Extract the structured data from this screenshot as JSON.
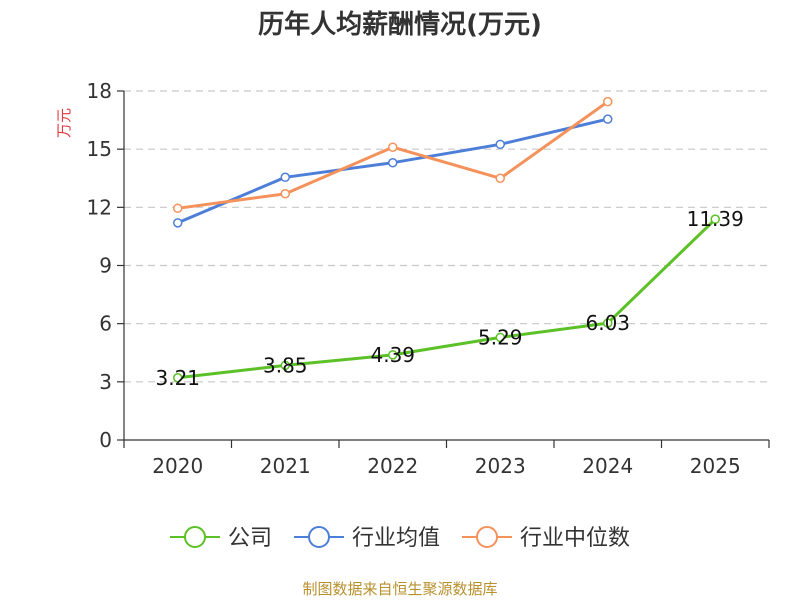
{
  "chart_data": {
    "type": "line",
    "title": "历年人均薪酬情况(万元)",
    "ylabel": "万元",
    "xlabel": "",
    "categories": [
      "2020",
      "2021",
      "2022",
      "2023",
      "2024",
      "2025"
    ],
    "ylim": [
      0,
      18
    ],
    "yticks": [
      0,
      3,
      6,
      9,
      12,
      15,
      18
    ],
    "grid": true,
    "legend_position": "bottom",
    "series": [
      {
        "name": "公司",
        "color": "#5bc126",
        "values": [
          3.21,
          3.85,
          4.39,
          5.29,
          6.03,
          11.39
        ],
        "labels": [
          "3.21",
          "3.85",
          "4.39",
          "5.29",
          "6.03",
          "11.39"
        ]
      },
      {
        "name": "行业均值",
        "color": "#4d7fd8",
        "values": [
          11.2,
          13.55,
          14.3,
          15.25,
          16.55,
          null
        ]
      },
      {
        "name": "行业中位数",
        "color": "#f5915a",
        "values": [
          11.95,
          12.7,
          15.1,
          13.5,
          17.45,
          null
        ]
      }
    ]
  },
  "source": "制图数据来自恒生聚源数据库"
}
